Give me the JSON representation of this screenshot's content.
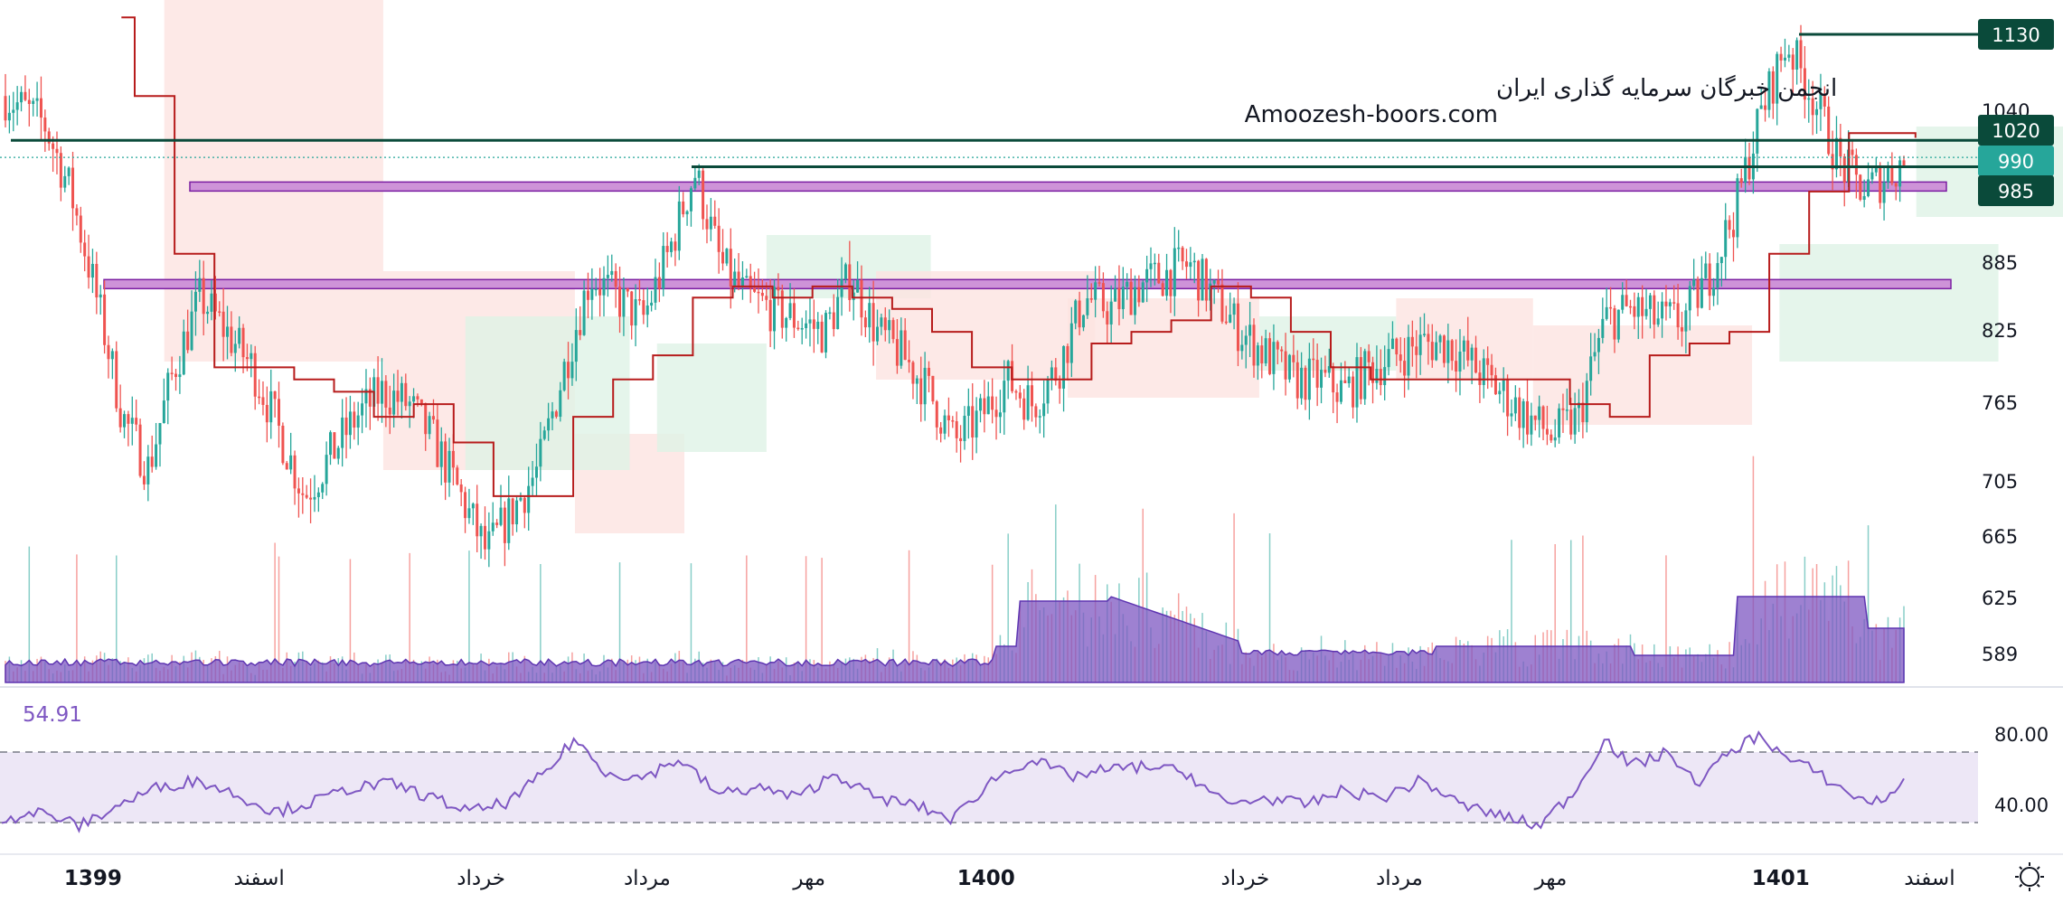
{
  "watermark": {
    "line1": "انجمن خبرگان سرمایه گذاری ایران",
    "line2": "Amoozesh-boors.com"
  },
  "price_axis": {
    "ticks": [
      "1040",
      "885",
      "825",
      "765",
      "705",
      "665",
      "625",
      "589"
    ]
  },
  "price_badges": [
    {
      "label": "1130",
      "price": 1130,
      "color": "#0a4a3a"
    },
    {
      "label": "1020",
      "price": 1020,
      "color": "#0a4a3a"
    },
    {
      "label": "990",
      "price": 990,
      "color": "#26a69a"
    },
    {
      "label": "985",
      "price": 985,
      "color": "#0a4a3a"
    }
  ],
  "rsi": {
    "value": "54.91",
    "ticks": [
      "80.00",
      "40.00"
    ],
    "upper": 70,
    "lower": 30,
    "color": "#7e57c2"
  },
  "time_axis": {
    "labels": [
      {
        "text": "1399",
        "bold": true,
        "pos": 0.07
      },
      {
        "text": "اسفند",
        "bold": false,
        "pos": 0.195
      },
      {
        "text": "خرداد",
        "bold": false,
        "pos": 0.362
      },
      {
        "text": "مرداد",
        "bold": false,
        "pos": 0.487
      },
      {
        "text": "مهر",
        "bold": false,
        "pos": 0.609
      },
      {
        "text": "1400",
        "bold": true,
        "pos": 0.742
      },
      {
        "text": "خرداد",
        "bold": false,
        "pos": 0.937
      },
      {
        "text": "مرداد",
        "bold": false,
        "pos": 1.053
      },
      {
        "text": "مهر",
        "bold": false,
        "pos": 1.167
      },
      {
        "text": "1401",
        "bold": true,
        "pos": 1.34
      },
      {
        "text": "اسفند",
        "bold": false,
        "pos": 1.452
      }
    ]
  },
  "colors": {
    "up": "#26a69a",
    "down": "#ef5350",
    "baseline": "#b71c1c",
    "cloud_bull": "#dff2e6",
    "cloud_bear": "#fde3e1",
    "support": "#ce93d8",
    "support_border": "#7b1fa2",
    "level_line": "#0a4a3a",
    "volume_ma": "#7e57c2"
  },
  "chart_data": {
    "type": "candlestick",
    "title": "",
    "ylim": [
      580,
      1170
    ],
    "scale": "log",
    "resistance_levels": [
      1130,
      1020,
      985
    ],
    "support_zones": [
      [
        975,
        967
      ],
      [
        882,
        874
      ]
    ],
    "rsi_range": [
      20,
      90
    ],
    "price_path": [
      [
        0,
        1060
      ],
      [
        0.03,
        1030
      ],
      [
        0.05,
        960
      ],
      [
        0.07,
        860
      ],
      [
        0.09,
        760
      ],
      [
        0.11,
        720
      ],
      [
        0.13,
        800
      ],
      [
        0.15,
        860
      ],
      [
        0.17,
        830
      ],
      [
        0.19,
        800
      ],
      [
        0.21,
        750
      ],
      [
        0.23,
        700
      ],
      [
        0.25,
        730
      ],
      [
        0.27,
        760
      ],
      [
        0.29,
        780
      ],
      [
        0.31,
        770
      ],
      [
        0.33,
        740
      ],
      [
        0.35,
        700
      ],
      [
        0.37,
        660
      ],
      [
        0.39,
        690
      ],
      [
        0.41,
        720
      ],
      [
        0.43,
        800
      ],
      [
        0.45,
        880
      ],
      [
        0.47,
        860
      ],
      [
        0.49,
        840
      ],
      [
        0.51,
        900
      ],
      [
        0.53,
        980
      ],
      [
        0.55,
        890
      ],
      [
        0.57,
        860
      ],
      [
        0.59,
        850
      ],
      [
        0.61,
        840
      ],
      [
        0.63,
        830
      ],
      [
        0.65,
        880
      ],
      [
        0.67,
        830
      ],
      [
        0.69,
        810
      ],
      [
        0.71,
        780
      ],
      [
        0.73,
        740
      ],
      [
        0.75,
        760
      ],
      [
        0.77,
        790
      ],
      [
        0.79,
        770
      ],
      [
        0.81,
        800
      ],
      [
        0.83,
        860
      ],
      [
        0.85,
        850
      ],
      [
        0.87,
        870
      ],
      [
        0.89,
        880
      ],
      [
        0.91,
        890
      ],
      [
        0.93,
        860
      ],
      [
        0.95,
        830
      ],
      [
        0.97,
        810
      ],
      [
        0.99,
        790
      ],
      [
        1.01,
        790
      ],
      [
        1.03,
        780
      ],
      [
        1.05,
        800
      ],
      [
        1.07,
        810
      ],
      [
        1.09,
        820
      ],
      [
        1.11,
        820
      ],
      [
        1.13,
        800
      ],
      [
        1.15,
        780
      ],
      [
        1.17,
        760
      ],
      [
        1.19,
        745
      ],
      [
        1.21,
        760
      ],
      [
        1.23,
        840
      ],
      [
        1.25,
        850
      ],
      [
        1.27,
        840
      ],
      [
        1.29,
        840
      ],
      [
        1.31,
        880
      ],
      [
        1.33,
        940
      ],
      [
        1.35,
        1040
      ],
      [
        1.37,
        1120
      ],
      [
        1.39,
        1060
      ],
      [
        1.41,
        990
      ],
      [
        1.43,
        960
      ],
      [
        1.45,
        980
      ],
      [
        1.46,
        990
      ]
    ],
    "baseline_path": [
      [
        0.09,
        1150
      ],
      [
        0.1,
        1060
      ],
      [
        0.13,
        900
      ],
      [
        0.16,
        800
      ],
      [
        0.2,
        800
      ],
      [
        0.22,
        790
      ],
      [
        0.25,
        780
      ],
      [
        0.28,
        760
      ],
      [
        0.31,
        770
      ],
      [
        0.34,
        740
      ],
      [
        0.37,
        700
      ],
      [
        0.4,
        700
      ],
      [
        0.43,
        760
      ],
      [
        0.46,
        790
      ],
      [
        0.49,
        810
      ],
      [
        0.52,
        860
      ],
      [
        0.55,
        870
      ],
      [
        0.58,
        860
      ],
      [
        0.61,
        870
      ],
      [
        0.64,
        860
      ],
      [
        0.67,
        850
      ],
      [
        0.7,
        830
      ],
      [
        0.73,
        800
      ],
      [
        0.76,
        790
      ],
      [
        0.79,
        790
      ],
      [
        0.82,
        820
      ],
      [
        0.85,
        830
      ],
      [
        0.88,
        840
      ],
      [
        0.91,
        870
      ],
      [
        0.94,
        860
      ],
      [
        0.97,
        830
      ],
      [
        1.0,
        800
      ],
      [
        1.03,
        790
      ],
      [
        1.06,
        790
      ],
      [
        1.09,
        790
      ],
      [
        1.12,
        790
      ],
      [
        1.15,
        790
      ],
      [
        1.18,
        770
      ],
      [
        1.21,
        760
      ],
      [
        1.24,
        810
      ],
      [
        1.27,
        820
      ],
      [
        1.3,
        830
      ],
      [
        1.33,
        900
      ],
      [
        1.36,
        960
      ],
      [
        1.39,
        1020
      ],
      [
        1.42,
        1020
      ],
      [
        1.44,
        1015
      ]
    ],
    "rsi_path": [
      [
        0,
        32
      ],
      [
        0.03,
        36
      ],
      [
        0.06,
        28
      ],
      [
        0.09,
        40
      ],
      [
        0.12,
        50
      ],
      [
        0.15,
        54
      ],
      [
        0.18,
        46
      ],
      [
        0.21,
        36
      ],
      [
        0.24,
        42
      ],
      [
        0.27,
        50
      ],
      [
        0.3,
        52
      ],
      [
        0.33,
        44
      ],
      [
        0.36,
        36
      ],
      [
        0.39,
        42
      ],
      [
        0.42,
        60
      ],
      [
        0.44,
        78
      ],
      [
        0.46,
        60
      ],
      [
        0.49,
        55
      ],
      [
        0.52,
        66
      ],
      [
        0.55,
        46
      ],
      [
        0.58,
        50
      ],
      [
        0.61,
        44
      ],
      [
        0.64,
        58
      ],
      [
        0.67,
        44
      ],
      [
        0.7,
        40
      ],
      [
        0.73,
        32
      ],
      [
        0.76,
        54
      ],
      [
        0.79,
        66
      ],
      [
        0.82,
        56
      ],
      [
        0.85,
        60
      ],
      [
        0.88,
        62
      ],
      [
        0.91,
        58
      ],
      [
        0.94,
        40
      ],
      [
        0.97,
        44
      ],
      [
        1.0,
        40
      ],
      [
        1.03,
        48
      ],
      [
        1.06,
        44
      ],
      [
        1.09,
        54
      ],
      [
        1.12,
        40
      ],
      [
        1.15,
        34
      ],
      [
        1.18,
        28
      ],
      [
        1.21,
        50
      ],
      [
        1.23,
        78
      ],
      [
        1.25,
        62
      ],
      [
        1.28,
        70
      ],
      [
        1.3,
        52
      ],
      [
        1.33,
        72
      ],
      [
        1.35,
        80
      ],
      [
        1.37,
        66
      ],
      [
        1.39,
        60
      ],
      [
        1.41,
        50
      ],
      [
        1.43,
        42
      ],
      [
        1.45,
        44
      ],
      [
        1.46,
        54.91
      ]
    ]
  }
}
